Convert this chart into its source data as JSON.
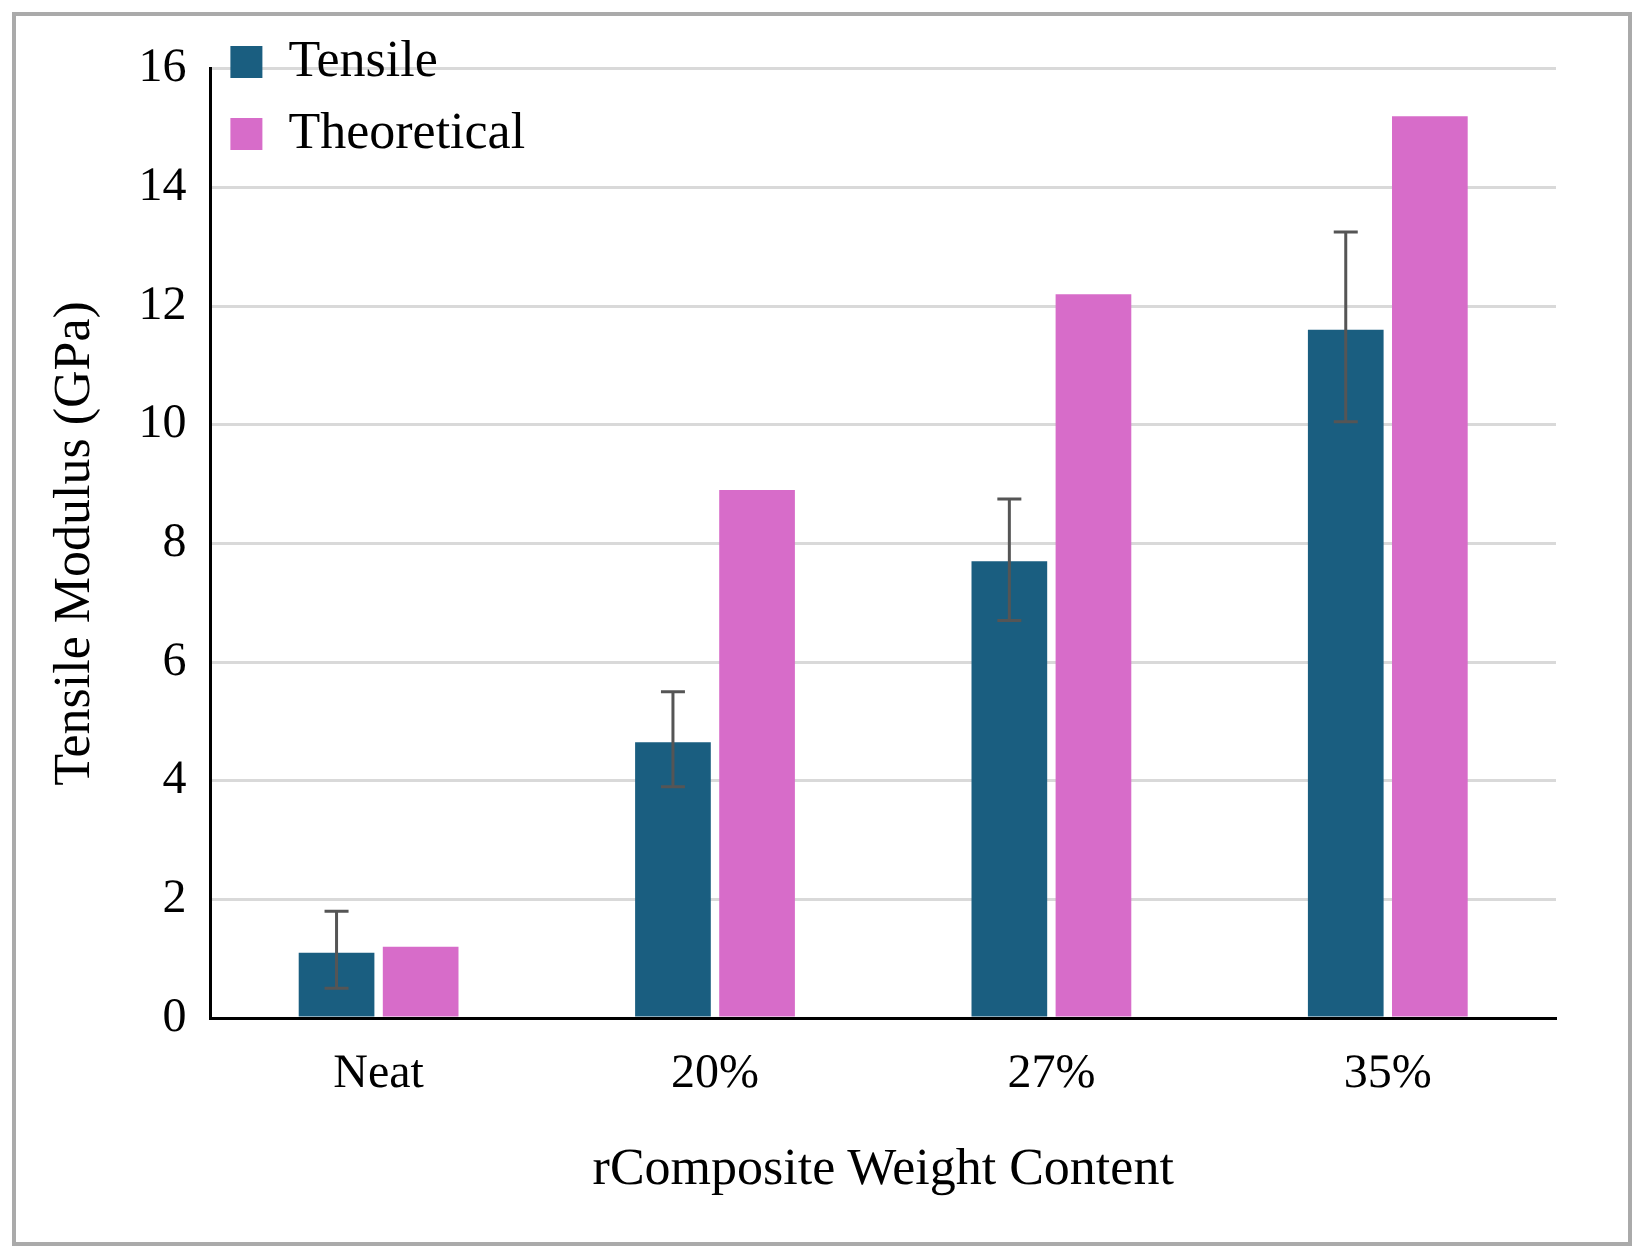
{
  "chart_data": {
    "type": "bar",
    "xlabel": "rComposite Weight Content",
    "ylabel": "Tensile Modulus (GPa)",
    "categories": [
      "Neat",
      "20%",
      "27%",
      "35%"
    ],
    "series": [
      {
        "name": "Tensile",
        "color": "#1a5e80",
        "values": [
          1.1,
          4.65,
          7.7,
          11.6
        ],
        "errors": [
          [
            0.5,
            1.8
          ],
          [
            3.9,
            5.5
          ],
          [
            6.7,
            8.75
          ],
          [
            10.05,
            13.25
          ]
        ]
      },
      {
        "name": "Theoretical",
        "color": "#d76cc9",
        "values": [
          1.2,
          8.9,
          12.2,
          15.2
        ]
      }
    ],
    "ylim": [
      0,
      16
    ],
    "yticks": [
      0,
      2,
      4,
      6,
      8,
      10,
      12,
      14,
      16
    ],
    "grid": "y",
    "legend": "top left"
  }
}
